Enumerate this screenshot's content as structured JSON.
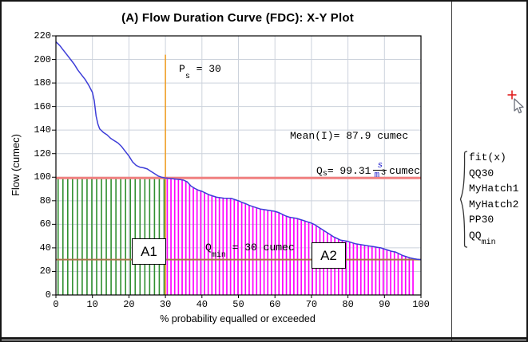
{
  "title": "(A) Flow Duration Curve (FDC): X-Y Plot",
  "axes": {
    "x_label": "% probability equalled or exceeded",
    "y_label": "Flow (cumec)"
  },
  "annotations": {
    "ps": {
      "base": "P",
      "sub": "s",
      "rest": " = 30"
    },
    "mean": {
      "text": "Mean(I)= 87.9 cumec"
    },
    "qs": {
      "base": "Q",
      "sub": "s",
      "eq": " = 99.31",
      "frac_num": "s",
      "frac_den": "m",
      "frac_sup": "3",
      "unit": "cumec"
    },
    "qmin": {
      "base": "Q",
      "sub": "min",
      "rest": " = 30 cumec"
    },
    "a1": "A1",
    "a2": "A2"
  },
  "legend": {
    "items": [
      {
        "label": "fit(x)",
        "sub": ""
      },
      {
        "label": "QQ30",
        "sub": ""
      },
      {
        "label": "MyHatch1",
        "sub": ""
      },
      {
        "label": "MyHatch2",
        "sub": ""
      },
      {
        "label": "PP30",
        "sub": ""
      },
      {
        "label": "QQ",
        "sub": "min"
      }
    ]
  },
  "colors": {
    "curve": "#3d3dd8",
    "qq30_line": "#f08080",
    "qmin_line": "#a9764a",
    "pp30_line": "#ef9f28",
    "hatch_a1": "#2f8f2f",
    "hatch_a2": "#ff00ff",
    "grid": "#ccd2dc",
    "crosshair": "#e02020"
  },
  "chart_data": {
    "type": "line",
    "title": "(A) Flow Duration Curve (FDC): X-Y Plot",
    "xlabel": "% probability equalled or exceeded",
    "ylabel": "Flow (cumec)",
    "xlim": [
      0,
      100
    ],
    "ylim": [
      0,
      220
    ],
    "x_ticks": [
      0,
      10,
      20,
      30,
      40,
      50,
      60,
      70,
      80,
      90,
      100
    ],
    "y_ticks": [
      0,
      20,
      40,
      60,
      80,
      100,
      120,
      140,
      160,
      180,
      200,
      220
    ],
    "grid": true,
    "legend_position": "right-of-plot",
    "key_values": {
      "Ps": 30,
      "Mean_I": 87.9,
      "Qs": 99.31,
      "Qmin": 30
    },
    "series": [
      {
        "name": "fit(x)",
        "type": "line",
        "color": "#3d3dd8",
        "width": 1.5,
        "points": [
          [
            0,
            215
          ],
          [
            1,
            212
          ],
          [
            2,
            208
          ],
          [
            3,
            204
          ],
          [
            4,
            200
          ],
          [
            5,
            196
          ],
          [
            6,
            191
          ],
          [
            7,
            187
          ],
          [
            8,
            183
          ],
          [
            9,
            178
          ],
          [
            10,
            172
          ],
          [
            10.5,
            165
          ],
          [
            11,
            152
          ],
          [
            11.5,
            145
          ],
          [
            12,
            141
          ],
          [
            13,
            138
          ],
          [
            14,
            136
          ],
          [
            15,
            133
          ],
          [
            16,
            131
          ],
          [
            17,
            129
          ],
          [
            18,
            126
          ],
          [
            19,
            122
          ],
          [
            20,
            118
          ],
          [
            21,
            113
          ],
          [
            22,
            110
          ],
          [
            23,
            108.5
          ],
          [
            24,
            108
          ],
          [
            25,
            107
          ],
          [
            26,
            105
          ],
          [
            27,
            103
          ],
          [
            28,
            101
          ],
          [
            29,
            100
          ],
          [
            30,
            99.3
          ],
          [
            32,
            98.6
          ],
          [
            34,
            98
          ],
          [
            35,
            97.5
          ],
          [
            36,
            96
          ],
          [
            37,
            92.5
          ],
          [
            38,
            90.5
          ],
          [
            39,
            89
          ],
          [
            40,
            88
          ],
          [
            41,
            86.5
          ],
          [
            42,
            85
          ],
          [
            44,
            83
          ],
          [
            46,
            82.2
          ],
          [
            48,
            82
          ],
          [
            50,
            80
          ],
          [
            51,
            78.5
          ],
          [
            52,
            77.5
          ],
          [
            53,
            76
          ],
          [
            54,
            75
          ],
          [
            55,
            74
          ],
          [
            56,
            73
          ],
          [
            57,
            72.5
          ],
          [
            58,
            72
          ],
          [
            59,
            71.5
          ],
          [
            60,
            71
          ],
          [
            61,
            70
          ],
          [
            62,
            68.5
          ],
          [
            63,
            67
          ],
          [
            64,
            66
          ],
          [
            65,
            65.5
          ],
          [
            66,
            65
          ],
          [
            67,
            64
          ],
          [
            68,
            63
          ],
          [
            69,
            62
          ],
          [
            70,
            61
          ],
          [
            71,
            59.5
          ],
          [
            72,
            57.5
          ],
          [
            73,
            55.5
          ],
          [
            74,
            53.5
          ],
          [
            75,
            51.5
          ],
          [
            76,
            49.5
          ],
          [
            77,
            48
          ],
          [
            78,
            46.5
          ],
          [
            79,
            46
          ],
          [
            80,
            45.5
          ],
          [
            81,
            44.5
          ],
          [
            82,
            43.5
          ],
          [
            83,
            43
          ],
          [
            84,
            42.5
          ],
          [
            85,
            42
          ],
          [
            86,
            41.5
          ],
          [
            87,
            41
          ],
          [
            88,
            40.5
          ],
          [
            89,
            40
          ],
          [
            90,
            39
          ],
          [
            91,
            38
          ],
          [
            92,
            37
          ],
          [
            93,
            36.5
          ],
          [
            94,
            35
          ],
          [
            95,
            33.5
          ],
          [
            96,
            32.5
          ],
          [
            97,
            31.5
          ],
          [
            98,
            30.8
          ],
          [
            99,
            30.3
          ],
          [
            100,
            30
          ]
        ]
      },
      {
        "name": "MyHatch1",
        "type": "hatch",
        "x0": 0.6,
        "x1": 29.7,
        "step": 1.32,
        "top": 99,
        "color": "#2f8f2f",
        "lw": 1.6
      },
      {
        "name": "MyHatch2",
        "type": "hatch",
        "x0": 30.5,
        "x1": 98,
        "step": 1.02,
        "top": "curve",
        "color": "#ff00ff",
        "lw": 1.7
      },
      {
        "name": "PP30",
        "type": "vline",
        "x": 30,
        "y0": 0,
        "y1": 204,
        "color": "#ef9f28",
        "width": 1.6
      },
      {
        "name": "QQ30",
        "type": "hline",
        "y": 99.31,
        "color": "#f08080",
        "width": 3
      },
      {
        "name": "QQmin",
        "type": "hline",
        "y": 30,
        "color": "#a9764a",
        "width": 2
      }
    ]
  }
}
